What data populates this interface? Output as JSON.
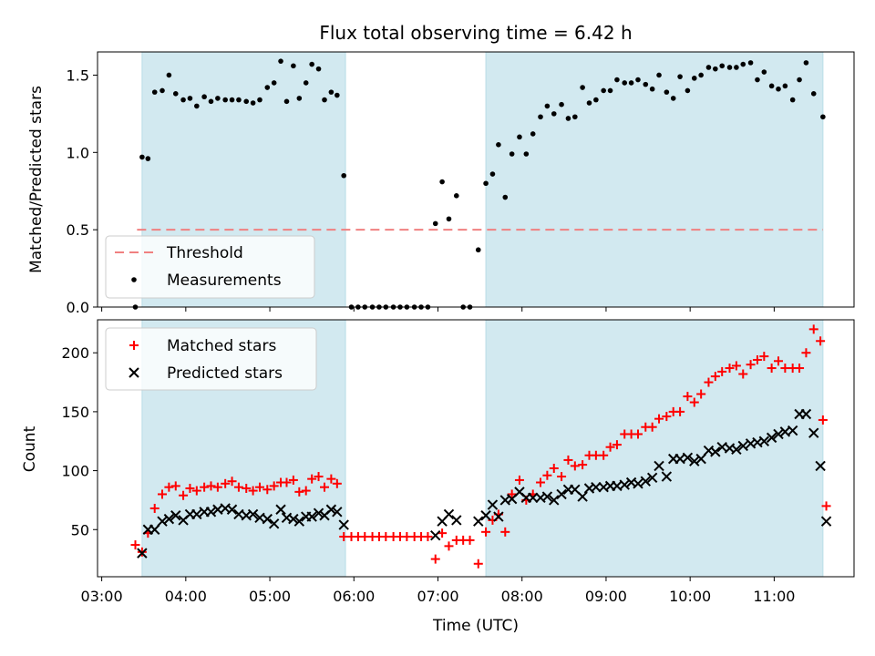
{
  "chart_data": {
    "type": "scatter",
    "title": "Flux total observing time = 6.42 h",
    "xlabel": "Time (UTC)",
    "xlim": [
      2.95,
      11.95
    ],
    "x_ticks": [
      {
        "v": 3,
        "label": "03:00"
      },
      {
        "v": 4,
        "label": "04:00"
      },
      {
        "v": 5,
        "label": "05:00"
      },
      {
        "v": 6,
        "label": "06:00"
      },
      {
        "v": 7,
        "label": "07:00"
      },
      {
        "v": 8,
        "label": "08:00"
      },
      {
        "v": 9,
        "label": "09:00"
      },
      {
        "v": 10,
        "label": "10:00"
      },
      {
        "v": 11,
        "label": "11:00"
      }
    ],
    "shaded_intervals": [
      [
        3.48,
        5.9
      ],
      [
        7.57,
        11.58
      ]
    ],
    "shade_color": "#d2e9f0",
    "top": {
      "ylabel": "Matched/Predicted stars",
      "ylim": [
        0,
        1.65
      ],
      "y_ticks": [
        {
          "v": 0,
          "label": "0.0"
        },
        {
          "v": 0.5,
          "label": "0.5"
        },
        {
          "v": 1.0,
          "label": "1.0"
        },
        {
          "v": 1.5,
          "label": "1.5"
        }
      ],
      "threshold": {
        "value": 0.5,
        "x_range": [
          3.42,
          11.58
        ],
        "color": "#f08080"
      },
      "legend": [
        "Threshold",
        "Measurements"
      ],
      "measurements": [
        [
          3.4,
          0.0
        ],
        [
          3.48,
          0.97
        ],
        [
          3.55,
          0.96
        ],
        [
          3.63,
          1.39
        ],
        [
          3.72,
          1.4
        ],
        [
          3.8,
          1.5
        ],
        [
          3.88,
          1.38
        ],
        [
          3.97,
          1.34
        ],
        [
          4.05,
          1.35
        ],
        [
          4.13,
          1.3
        ],
        [
          4.22,
          1.36
        ],
        [
          4.3,
          1.33
        ],
        [
          4.38,
          1.35
        ],
        [
          4.47,
          1.34
        ],
        [
          4.55,
          1.34
        ],
        [
          4.63,
          1.34
        ],
        [
          4.72,
          1.33
        ],
        [
          4.8,
          1.32
        ],
        [
          4.88,
          1.34
        ],
        [
          4.97,
          1.42
        ],
        [
          5.05,
          1.45
        ],
        [
          5.13,
          1.59
        ],
        [
          5.2,
          1.33
        ],
        [
          5.28,
          1.56
        ],
        [
          5.35,
          1.35
        ],
        [
          5.43,
          1.45
        ],
        [
          5.5,
          1.57
        ],
        [
          5.58,
          1.54
        ],
        [
          5.65,
          1.34
        ],
        [
          5.73,
          1.39
        ],
        [
          5.8,
          1.37
        ],
        [
          5.88,
          0.85
        ],
        [
          5.97,
          0.0
        ],
        [
          6.05,
          0.0
        ],
        [
          6.13,
          0.0
        ],
        [
          6.22,
          0.0
        ],
        [
          6.3,
          0.0
        ],
        [
          6.38,
          0.0
        ],
        [
          6.47,
          0.0
        ],
        [
          6.55,
          0.0
        ],
        [
          6.63,
          0.0
        ],
        [
          6.72,
          0.0
        ],
        [
          6.8,
          0.0
        ],
        [
          6.88,
          0.0
        ],
        [
          6.97,
          0.54
        ],
        [
          7.05,
          0.81
        ],
        [
          7.13,
          0.57
        ],
        [
          7.22,
          0.72
        ],
        [
          7.3,
          0.0
        ],
        [
          7.38,
          0.0
        ],
        [
          7.48,
          0.37
        ],
        [
          7.57,
          0.8
        ],
        [
          7.65,
          0.86
        ],
        [
          7.72,
          1.05
        ],
        [
          7.8,
          0.71
        ],
        [
          7.88,
          0.99
        ],
        [
          7.97,
          1.1
        ],
        [
          8.05,
          0.99
        ],
        [
          8.13,
          1.12
        ],
        [
          8.22,
          1.23
        ],
        [
          8.3,
          1.3
        ],
        [
          8.38,
          1.25
        ],
        [
          8.47,
          1.31
        ],
        [
          8.55,
          1.22
        ],
        [
          8.63,
          1.23
        ],
        [
          8.72,
          1.42
        ],
        [
          8.8,
          1.32
        ],
        [
          8.88,
          1.34
        ],
        [
          8.97,
          1.4
        ],
        [
          9.05,
          1.4
        ],
        [
          9.13,
          1.47
        ],
        [
          9.22,
          1.45
        ],
        [
          9.3,
          1.45
        ],
        [
          9.38,
          1.47
        ],
        [
          9.47,
          1.44
        ],
        [
          9.55,
          1.41
        ],
        [
          9.63,
          1.5
        ],
        [
          9.72,
          1.39
        ],
        [
          9.8,
          1.35
        ],
        [
          9.88,
          1.49
        ],
        [
          9.97,
          1.4
        ],
        [
          10.05,
          1.48
        ],
        [
          10.13,
          1.5
        ],
        [
          10.22,
          1.55
        ],
        [
          10.3,
          1.54
        ],
        [
          10.38,
          1.56
        ],
        [
          10.47,
          1.55
        ],
        [
          10.55,
          1.55
        ],
        [
          10.63,
          1.57
        ],
        [
          10.72,
          1.58
        ],
        [
          10.8,
          1.47
        ],
        [
          10.88,
          1.52
        ],
        [
          10.97,
          1.43
        ],
        [
          11.05,
          1.41
        ],
        [
          11.13,
          1.43
        ],
        [
          11.22,
          1.34
        ],
        [
          11.3,
          1.47
        ],
        [
          11.38,
          1.58
        ],
        [
          11.47,
          1.38
        ],
        [
          11.58,
          1.23
        ]
      ]
    },
    "bottom": {
      "ylabel": "Count",
      "ylim": [
        10,
        228
      ],
      "y_ticks": [
        {
          "v": 50,
          "label": "50"
        },
        {
          "v": 100,
          "label": "100"
        },
        {
          "v": 150,
          "label": "150"
        },
        {
          "v": 200,
          "label": "200"
        }
      ],
      "series": [
        {
          "name": "Matched stars",
          "marker": "plus",
          "color": "#ff0000",
          "points": [
            [
              3.4,
              37
            ],
            [
              3.48,
              31
            ],
            [
              3.55,
              47
            ],
            [
              3.63,
              68
            ],
            [
              3.72,
              80
            ],
            [
              3.8,
              86
            ],
            [
              3.88,
              87
            ],
            [
              3.97,
              79
            ],
            [
              4.05,
              85
            ],
            [
              4.13,
              83
            ],
            [
              4.22,
              86
            ],
            [
              4.3,
              87
            ],
            [
              4.38,
              86
            ],
            [
              4.47,
              89
            ],
            [
              4.55,
              91
            ],
            [
              4.63,
              86
            ],
            [
              4.72,
              85
            ],
            [
              4.8,
              83
            ],
            [
              4.88,
              86
            ],
            [
              4.97,
              84
            ],
            [
              5.05,
              87
            ],
            [
              5.13,
              90
            ],
            [
              5.2,
              90
            ],
            [
              5.28,
              92
            ],
            [
              5.35,
              82
            ],
            [
              5.43,
              83
            ],
            [
              5.5,
              93
            ],
            [
              5.58,
              95
            ],
            [
              5.65,
              86
            ],
            [
              5.73,
              93
            ],
            [
              5.8,
              89
            ],
            [
              5.88,
              44
            ],
            [
              5.97,
              44
            ],
            [
              6.05,
              44
            ],
            [
              6.13,
              44
            ],
            [
              6.22,
              44
            ],
            [
              6.3,
              44
            ],
            [
              6.38,
              44
            ],
            [
              6.47,
              44
            ],
            [
              6.55,
              44
            ],
            [
              6.63,
              44
            ],
            [
              6.72,
              44
            ],
            [
              6.8,
              44
            ],
            [
              6.88,
              44
            ],
            [
              6.97,
              25
            ],
            [
              7.05,
              47
            ],
            [
              7.13,
              36
            ],
            [
              7.22,
              41
            ],
            [
              7.3,
              41
            ],
            [
              7.38,
              41
            ],
            [
              7.48,
              21
            ],
            [
              7.57,
              48
            ],
            [
              7.65,
              58
            ],
            [
              7.72,
              63
            ],
            [
              7.8,
              48
            ],
            [
              7.88,
              80
            ],
            [
              7.97,
              92
            ],
            [
              8.05,
              75
            ],
            [
              8.13,
              80
            ],
            [
              8.22,
              90
            ],
            [
              8.3,
              96
            ],
            [
              8.38,
              102
            ],
            [
              8.47,
              95
            ],
            [
              8.55,
              109
            ],
            [
              8.63,
              104
            ],
            [
              8.72,
              105
            ],
            [
              8.8,
              113
            ],
            [
              8.88,
              113
            ],
            [
              8.97,
              113
            ],
            [
              9.05,
              120
            ],
            [
              9.13,
              122
            ],
            [
              9.22,
              131
            ],
            [
              9.3,
              131
            ],
            [
              9.38,
              131
            ],
            [
              9.47,
              137
            ],
            [
              9.55,
              137
            ],
            [
              9.63,
              144
            ],
            [
              9.72,
              146
            ],
            [
              9.8,
              150
            ],
            [
              9.88,
              150
            ],
            [
              9.97,
              163
            ],
            [
              10.05,
              158
            ],
            [
              10.13,
              165
            ],
            [
              10.22,
              175
            ],
            [
              10.3,
              180
            ],
            [
              10.38,
              184
            ],
            [
              10.47,
              187
            ],
            [
              10.55,
              189
            ],
            [
              10.63,
              182
            ],
            [
              10.72,
              190
            ],
            [
              10.8,
              194
            ],
            [
              10.88,
              197
            ],
            [
              10.97,
              187
            ],
            [
              11.05,
              193
            ],
            [
              11.13,
              187
            ],
            [
              11.22,
              187
            ],
            [
              11.3,
              187
            ],
            [
              11.38,
              200
            ],
            [
              11.47,
              220
            ],
            [
              11.55,
              210
            ],
            [
              11.58,
              143
            ],
            [
              11.62,
              70
            ]
          ]
        },
        {
          "name": "Predicted stars",
          "marker": "x",
          "color": "#000000",
          "points": [
            [
              3.48,
              30
            ],
            [
              3.55,
              50
            ],
            [
              3.63,
              50
            ],
            [
              3.72,
              57
            ],
            [
              3.8,
              59
            ],
            [
              3.88,
              62
            ],
            [
              3.97,
              58
            ],
            [
              4.05,
              63
            ],
            [
              4.13,
              63
            ],
            [
              4.22,
              65
            ],
            [
              4.3,
              65
            ],
            [
              4.38,
              67
            ],
            [
              4.47,
              68
            ],
            [
              4.55,
              67
            ],
            [
              4.63,
              63
            ],
            [
              4.72,
              62
            ],
            [
              4.8,
              63
            ],
            [
              4.88,
              60
            ],
            [
              4.97,
              59
            ],
            [
              5.05,
              55
            ],
            [
              5.13,
              67
            ],
            [
              5.2,
              60
            ],
            [
              5.28,
              59
            ],
            [
              5.35,
              57
            ],
            [
              5.43,
              61
            ],
            [
              5.5,
              61
            ],
            [
              5.58,
              64
            ],
            [
              5.65,
              62
            ],
            [
              5.73,
              67
            ],
            [
              5.8,
              65
            ],
            [
              5.88,
              54
            ],
            [
              6.97,
              45
            ],
            [
              7.05,
              57
            ],
            [
              7.13,
              63
            ],
            [
              7.22,
              58
            ],
            [
              7.48,
              57
            ],
            [
              7.57,
              62
            ],
            [
              7.65,
              71
            ],
            [
              7.72,
              61
            ],
            [
              7.8,
              75
            ],
            [
              7.88,
              76
            ],
            [
              7.97,
              82
            ],
            [
              8.05,
              77
            ],
            [
              8.13,
              77
            ],
            [
              8.22,
              77
            ],
            [
              8.3,
              78
            ],
            [
              8.38,
              75
            ],
            [
              8.47,
              80
            ],
            [
              8.55,
              84
            ],
            [
              8.63,
              84
            ],
            [
              8.72,
              78
            ],
            [
              8.8,
              85
            ],
            [
              8.88,
              86
            ],
            [
              8.97,
              86
            ],
            [
              9.05,
              87
            ],
            [
              9.13,
              87
            ],
            [
              9.22,
              88
            ],
            [
              9.3,
              90
            ],
            [
              9.38,
              89
            ],
            [
              9.47,
              91
            ],
            [
              9.55,
              94
            ],
            [
              9.63,
              104
            ],
            [
              9.72,
              95
            ],
            [
              9.8,
              110
            ],
            [
              9.88,
              110
            ],
            [
              9.97,
              111
            ],
            [
              10.05,
              108
            ],
            [
              10.13,
              110
            ],
            [
              10.22,
              117
            ],
            [
              10.3,
              116
            ],
            [
              10.38,
              120
            ],
            [
              10.47,
              119
            ],
            [
              10.55,
              118
            ],
            [
              10.63,
              121
            ],
            [
              10.72,
              123
            ],
            [
              10.8,
              124
            ],
            [
              10.88,
              125
            ],
            [
              10.97,
              128
            ],
            [
              11.05,
              131
            ],
            [
              11.13,
              133
            ],
            [
              11.22,
              134
            ],
            [
              11.3,
              148
            ],
            [
              11.38,
              148
            ],
            [
              11.47,
              132
            ],
            [
              11.55,
              104
            ],
            [
              11.62,
              57
            ]
          ]
        }
      ]
    }
  }
}
